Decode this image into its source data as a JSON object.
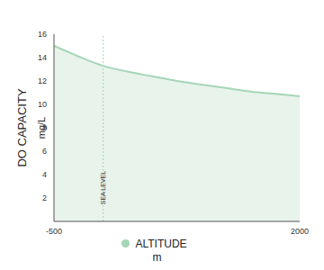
{
  "chart_data": {
    "type": "area",
    "x_label": "m",
    "y_label": [
      "DO CAPACITY",
      "mg/L"
    ],
    "x": [
      -500,
      -250,
      0,
      250,
      500,
      750,
      1000,
      1250,
      1500,
      1750,
      2000
    ],
    "series": [
      {
        "name": "ALTITUDE",
        "color": "#a5d6b6",
        "values": [
          15.0,
          14.1,
          13.3,
          12.8,
          12.4,
          12.0,
          11.7,
          11.4,
          11.1,
          10.9,
          10.7
        ]
      }
    ],
    "xlim": [
      -500,
      2000
    ],
    "xticks": [
      -500,
      2000
    ],
    "ylim": [
      0,
      16
    ],
    "yticks": [
      2,
      4,
      6,
      8,
      10,
      12,
      14,
      16
    ],
    "annotations": [
      {
        "x": 0,
        "label": "SEA LEVEL"
      }
    ],
    "legend": "bottom",
    "grid": false
  }
}
